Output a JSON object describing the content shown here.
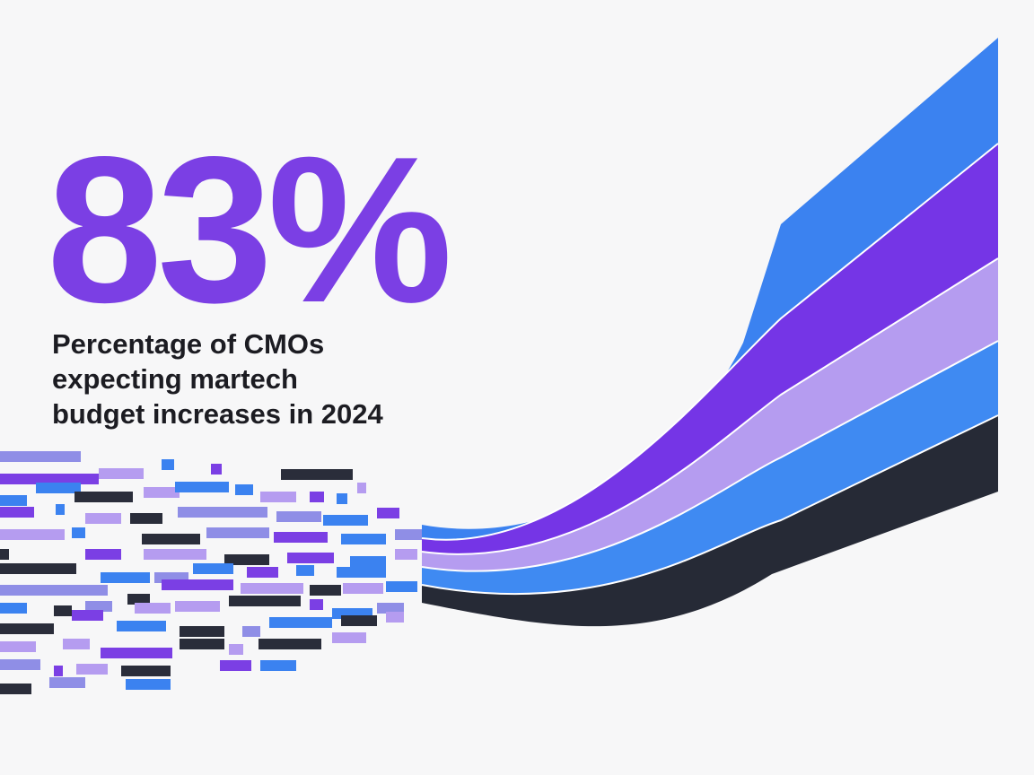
{
  "stat": {
    "value": "83%",
    "caption": [
      "Percentage of CMOs",
      "expecting martech",
      "budget increases in 2024"
    ]
  }
}
